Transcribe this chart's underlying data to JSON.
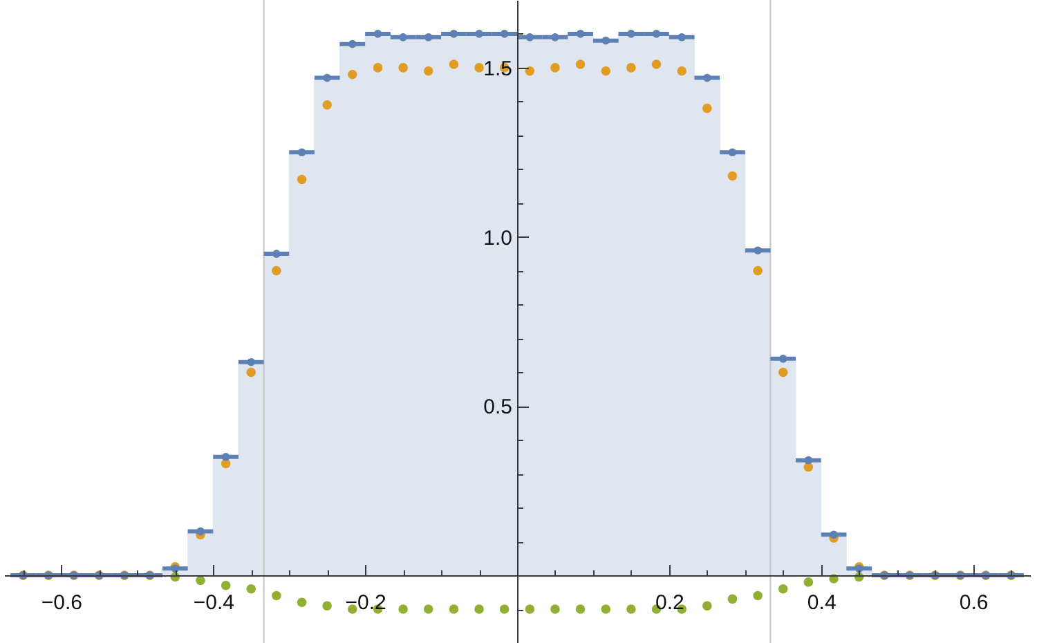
{
  "chart_data": {
    "type": "histogram",
    "bins": [
      -0.6667,
      -0.6333,
      -0.6,
      -0.5667,
      -0.5333,
      -0.5,
      -0.4667,
      -0.4333,
      -0.4,
      -0.3667,
      -0.3333,
      -0.3,
      -0.2667,
      -0.2333,
      -0.2,
      -0.1667,
      -0.1333,
      -0.1,
      -0.0667,
      -0.0333,
      0,
      0.0333,
      0.0667,
      0.1,
      0.1333,
      0.1667,
      0.2,
      0.2333,
      0.2667,
      0.3,
      0.3333,
      0.3667,
      0.4,
      0.4333,
      0.4667,
      0.5,
      0.5333,
      0.5667,
      0.6,
      0.6333,
      0.6667
    ],
    "x": [
      -0.65,
      -0.6167,
      -0.5833,
      -0.55,
      -0.5167,
      -0.4833,
      -0.45,
      -0.4167,
      -0.3833,
      -0.35,
      -0.3167,
      -0.2833,
      -0.25,
      -0.2167,
      -0.1833,
      -0.15,
      -0.1167,
      -0.0833,
      -0.05,
      -0.0167,
      0.0167,
      0.05,
      0.0833,
      0.1167,
      0.15,
      0.1833,
      0.2167,
      0.25,
      0.2833,
      0.3167,
      0.35,
      0.3833,
      0.4167,
      0.45,
      0.4833,
      0.5167,
      0.55,
      0.5833,
      0.6167,
      0.65
    ],
    "series": [
      {
        "color": "#dfe6f0",
        "values": [
          0,
          0,
          0,
          0,
          0,
          0,
          0.02,
          0.13,
          0.35,
          0.63,
          0.95,
          1.25,
          1.47,
          1.57,
          1.6,
          1.59,
          1.59,
          1.6,
          1.6,
          1.6,
          1.59,
          1.59,
          1.6,
          1.58,
          1.6,
          1.6,
          1.59,
          1.47,
          1.25,
          0.96,
          0.64,
          0.34,
          0.12,
          0.02,
          0,
          0,
          0,
          0,
          0,
          0
        ]
      },
      {
        "type": "scatter",
        "color": "#5e81b5",
        "values": [
          0,
          0,
          0,
          0,
          0,
          0,
          0.02,
          0.13,
          0.35,
          0.63,
          0.95,
          1.25,
          1.47,
          1.57,
          1.6,
          1.59,
          1.59,
          1.6,
          1.6,
          1.6,
          1.59,
          1.59,
          1.6,
          1.58,
          1.6,
          1.6,
          1.59,
          1.47,
          1.25,
          0.96,
          0.64,
          0.34,
          0.12,
          0.02,
          0,
          0,
          0,
          0,
          0,
          0
        ],
        "xerrors": [
          0.0167,
          0.0167,
          0.0167,
          0.0167,
          0.0167,
          0.0167,
          0.0167,
          0.0167,
          0.0167,
          0.0167,
          0.0167,
          0.0167,
          0.0167,
          0.0167,
          0.0167,
          0.0167,
          0.0167,
          0.0167,
          0.0167,
          0.0167,
          0.0167,
          0.0167,
          0.0167,
          0.0167,
          0.0167,
          0.0167,
          0.0167,
          0.0167,
          0.0167,
          0.0167,
          0.0167,
          0.0167,
          0.0167,
          0.0167,
          0.0167,
          0.0167,
          0.0167,
          0.0167,
          0.0167,
          0.0167
        ]
      },
      {
        "type": "scatter",
        "color": "#e19c24",
        "values": [
          0,
          0,
          0,
          0,
          0,
          0,
          0.025,
          0.12,
          0.33,
          0.6,
          0.9,
          1.17,
          1.39,
          1.48,
          1.5,
          1.5,
          1.49,
          1.51,
          1.5,
          1.5,
          1.49,
          1.5,
          1.51,
          1.49,
          1.5,
          1.51,
          1.49,
          1.38,
          1.18,
          0.9,
          0.6,
          0.32,
          0.11,
          0.025,
          0,
          0,
          0,
          0,
          0,
          0
        ]
      },
      {
        "type": "scatter",
        "color": "#8fb032",
        "values": [
          null,
          null,
          null,
          null,
          null,
          null,
          -0.005,
          -0.015,
          -0.03,
          -0.04,
          -0.06,
          -0.08,
          -0.09,
          -0.1,
          -0.1,
          -0.1,
          -0.1,
          -0.1,
          -0.1,
          -0.1,
          -0.1,
          -0.1,
          -0.1,
          -0.1,
          -0.1,
          -0.1,
          -0.1,
          -0.09,
          -0.07,
          -0.06,
          -0.04,
          -0.02,
          -0.01,
          -0.005,
          null,
          null,
          null,
          null,
          null,
          null
        ]
      }
    ],
    "marker": "circle",
    "ref_lines": [
      {
        "axis": "x",
        "value": -0.3333,
        "color": "#c4c4c4"
      },
      {
        "axis": "x",
        "value": 0.3333,
        "color": "#c4c4c4"
      }
    ],
    "xlim": [
      -0.675,
      0.675
    ],
    "ylim": [
      -0.2,
      1.7
    ],
    "xticks": [
      {
        "value": -0.65,
        "label": null
      },
      -0.6,
      {
        "value": -0.55,
        "label": null
      },
      {
        "value": -0.5,
        "label": null
      },
      {
        "value": -0.45,
        "label": null
      },
      -0.4,
      {
        "value": -0.35,
        "label": null
      },
      {
        "value": -0.3,
        "label": null
      },
      {
        "value": -0.25,
        "label": null
      },
      -0.2,
      {
        "value": -0.15,
        "label": null
      },
      {
        "value": -0.1,
        "label": null
      },
      {
        "value": -0.05,
        "label": null
      },
      {
        "value": 0.05,
        "label": null
      },
      {
        "value": 0.1,
        "label": null
      },
      {
        "value": 0.15,
        "label": null
      },
      0.2,
      {
        "value": 0.25,
        "label": null
      },
      {
        "value": 0.3,
        "label": null
      },
      {
        "value": 0.35,
        "label": null
      },
      0.4,
      {
        "value": 0.45,
        "label": null
      },
      {
        "value": 0.5,
        "label": null
      },
      {
        "value": 0.55,
        "label": null
      },
      0.6,
      {
        "value": 0.65,
        "label": null
      }
    ],
    "yticks": [
      {
        "value": -0.1,
        "label": null
      },
      {
        "value": 0.1,
        "label": null
      },
      {
        "value": 0.2,
        "label": null
      },
      {
        "value": 0.3,
        "label": null
      },
      {
        "value": 0.4,
        "label": null
      },
      0.5,
      {
        "value": 0.6,
        "label": null
      },
      {
        "value": 0.7,
        "label": null
      },
      {
        "value": 0.8,
        "label": null
      },
      {
        "value": 0.9,
        "label": null
      },
      {
        "value": 1,
        "label": "1.0"
      },
      {
        "value": 1.1,
        "label": null
      },
      {
        "value": 1.2,
        "label": null
      },
      {
        "value": 1.3,
        "label": null
      },
      {
        "value": 1.4,
        "label": null
      },
      1.5,
      {
        "value": 1.6,
        "label": null
      }
    ]
  }
}
